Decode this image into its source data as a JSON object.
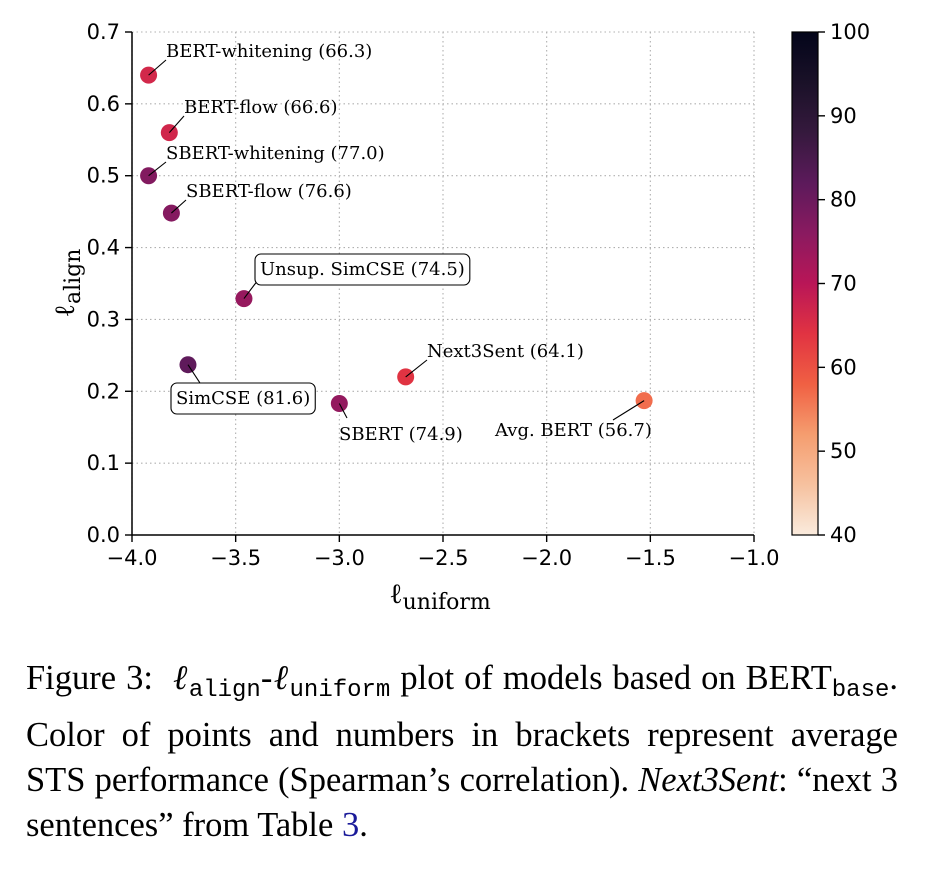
{
  "chart_data": {
    "type": "scatter",
    "xlabel": "ℓ",
    "xlabel_sub": "uniform",
    "ylabel": "ℓ",
    "ylabel_sub": "align",
    "xlim": [
      -4.0,
      -1.0
    ],
    "ylim": [
      0.0,
      0.7
    ],
    "x_ticks": [
      -4.0,
      -3.5,
      -3.0,
      -2.5,
      -2.0,
      -1.5,
      -1.0
    ],
    "x_tick_labels": [
      "−4.0",
      "−3.5",
      "−3.0",
      "−2.5",
      "−2.0",
      "−1.5",
      "−1.0"
    ],
    "y_ticks": [
      0.0,
      0.1,
      0.2,
      0.3,
      0.4,
      0.5,
      0.6,
      0.7
    ],
    "y_tick_labels": [
      "0.0",
      "0.1",
      "0.2",
      "0.3",
      "0.4",
      "0.5",
      "0.6",
      "0.7"
    ],
    "grid": true,
    "colorbar": {
      "range": [
        40,
        100
      ],
      "ticks": [
        40,
        50,
        60,
        70,
        80,
        90,
        100
      ],
      "tick_labels": [
        "40",
        "50",
        "60",
        "70",
        "80",
        "90",
        "100"
      ]
    },
    "points": [
      {
        "label": "BERT-whitening (66.3)",
        "x": -3.92,
        "y": 0.64,
        "score": 66.3,
        "boxed": false
      },
      {
        "label": "BERT-flow (66.6)",
        "x": -3.82,
        "y": 0.56,
        "score": 66.6,
        "boxed": false
      },
      {
        "label": "SBERT-whitening (77.0)",
        "x": -3.92,
        "y": 0.5,
        "score": 77.0,
        "boxed": false
      },
      {
        "label": "SBERT-flow (76.6)",
        "x": -3.81,
        "y": 0.448,
        "score": 76.6,
        "boxed": false
      },
      {
        "label": "Unsup. SimCSE (74.5)",
        "x": -3.46,
        "y": 0.329,
        "score": 74.5,
        "boxed": true
      },
      {
        "label": "SimCSE (81.6)",
        "x": -3.73,
        "y": 0.237,
        "score": 81.6,
        "boxed": true
      },
      {
        "label": "Next3Sent (64.1)",
        "x": -2.68,
        "y": 0.22,
        "score": 64.1,
        "boxed": false
      },
      {
        "label": "SBERT (74.9)",
        "x": -3.0,
        "y": 0.183,
        "score": 74.9,
        "boxed": false
      },
      {
        "label": "Avg. BERT (56.7)",
        "x": -1.53,
        "y": 0.187,
        "score": 56.7,
        "boxed": false
      }
    ]
  },
  "caption": {
    "figure_label": "Figure 3:",
    "ell": "ℓ",
    "align_sub": "align",
    "dash": "-",
    "uniform_sub": "uniform",
    "part1": " plot of models based on BERT",
    "base_sub": "base",
    "part2": ". Color of points and numbers in brackets represent average STS performance (Spearman’s correlation). ",
    "next3sent": "Next3Sent",
    "part3": ": “next 3 sentences” from Table ",
    "table_ref": "3",
    "part4": "."
  }
}
